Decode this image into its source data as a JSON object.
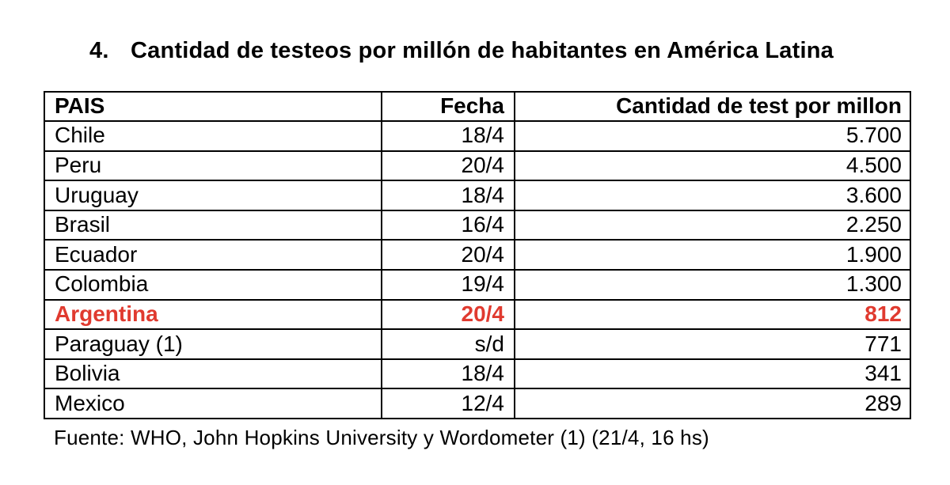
{
  "title": {
    "number": "4.",
    "text": "Cantidad de testeos por millón de habitantes en América Latina"
  },
  "table": {
    "columns": [
      "PAIS",
      "Fecha",
      "Cantidad de test por millon"
    ],
    "rows": [
      {
        "pais": "Chile",
        "fecha": "18/4",
        "cantidad": "5.700",
        "highlight": false
      },
      {
        "pais": "Peru",
        "fecha": "20/4",
        "cantidad": "4.500",
        "highlight": false
      },
      {
        "pais": "Uruguay",
        "fecha": "18/4",
        "cantidad": "3.600",
        "highlight": false
      },
      {
        "pais": "Brasil",
        "fecha": "16/4",
        "cantidad": "2.250",
        "highlight": false
      },
      {
        "pais": "Ecuador",
        "fecha": "20/4",
        "cantidad": "1.900",
        "highlight": false
      },
      {
        "pais": "Colombia",
        "fecha": "19/4",
        "cantidad": "1.300",
        "highlight": false
      },
      {
        "pais": "Argentina",
        "fecha": "20/4",
        "cantidad": "812",
        "highlight": true
      },
      {
        "pais": "Paraguay (1)",
        "fecha": "s/d",
        "cantidad": "771",
        "highlight": false
      },
      {
        "pais": "Bolivia",
        "fecha": "18/4",
        "cantidad": "341",
        "highlight": false
      },
      {
        "pais": "Mexico",
        "fecha": "12/4",
        "cantidad": "289",
        "highlight": false
      }
    ]
  },
  "footer": "Fuente: WHO, John Hopkins University y Wordometer (1) (21/4, 16 hs)",
  "colors": {
    "highlight": "#e03a2f",
    "text": "#000000",
    "border": "#000000",
    "background": "#ffffff"
  }
}
